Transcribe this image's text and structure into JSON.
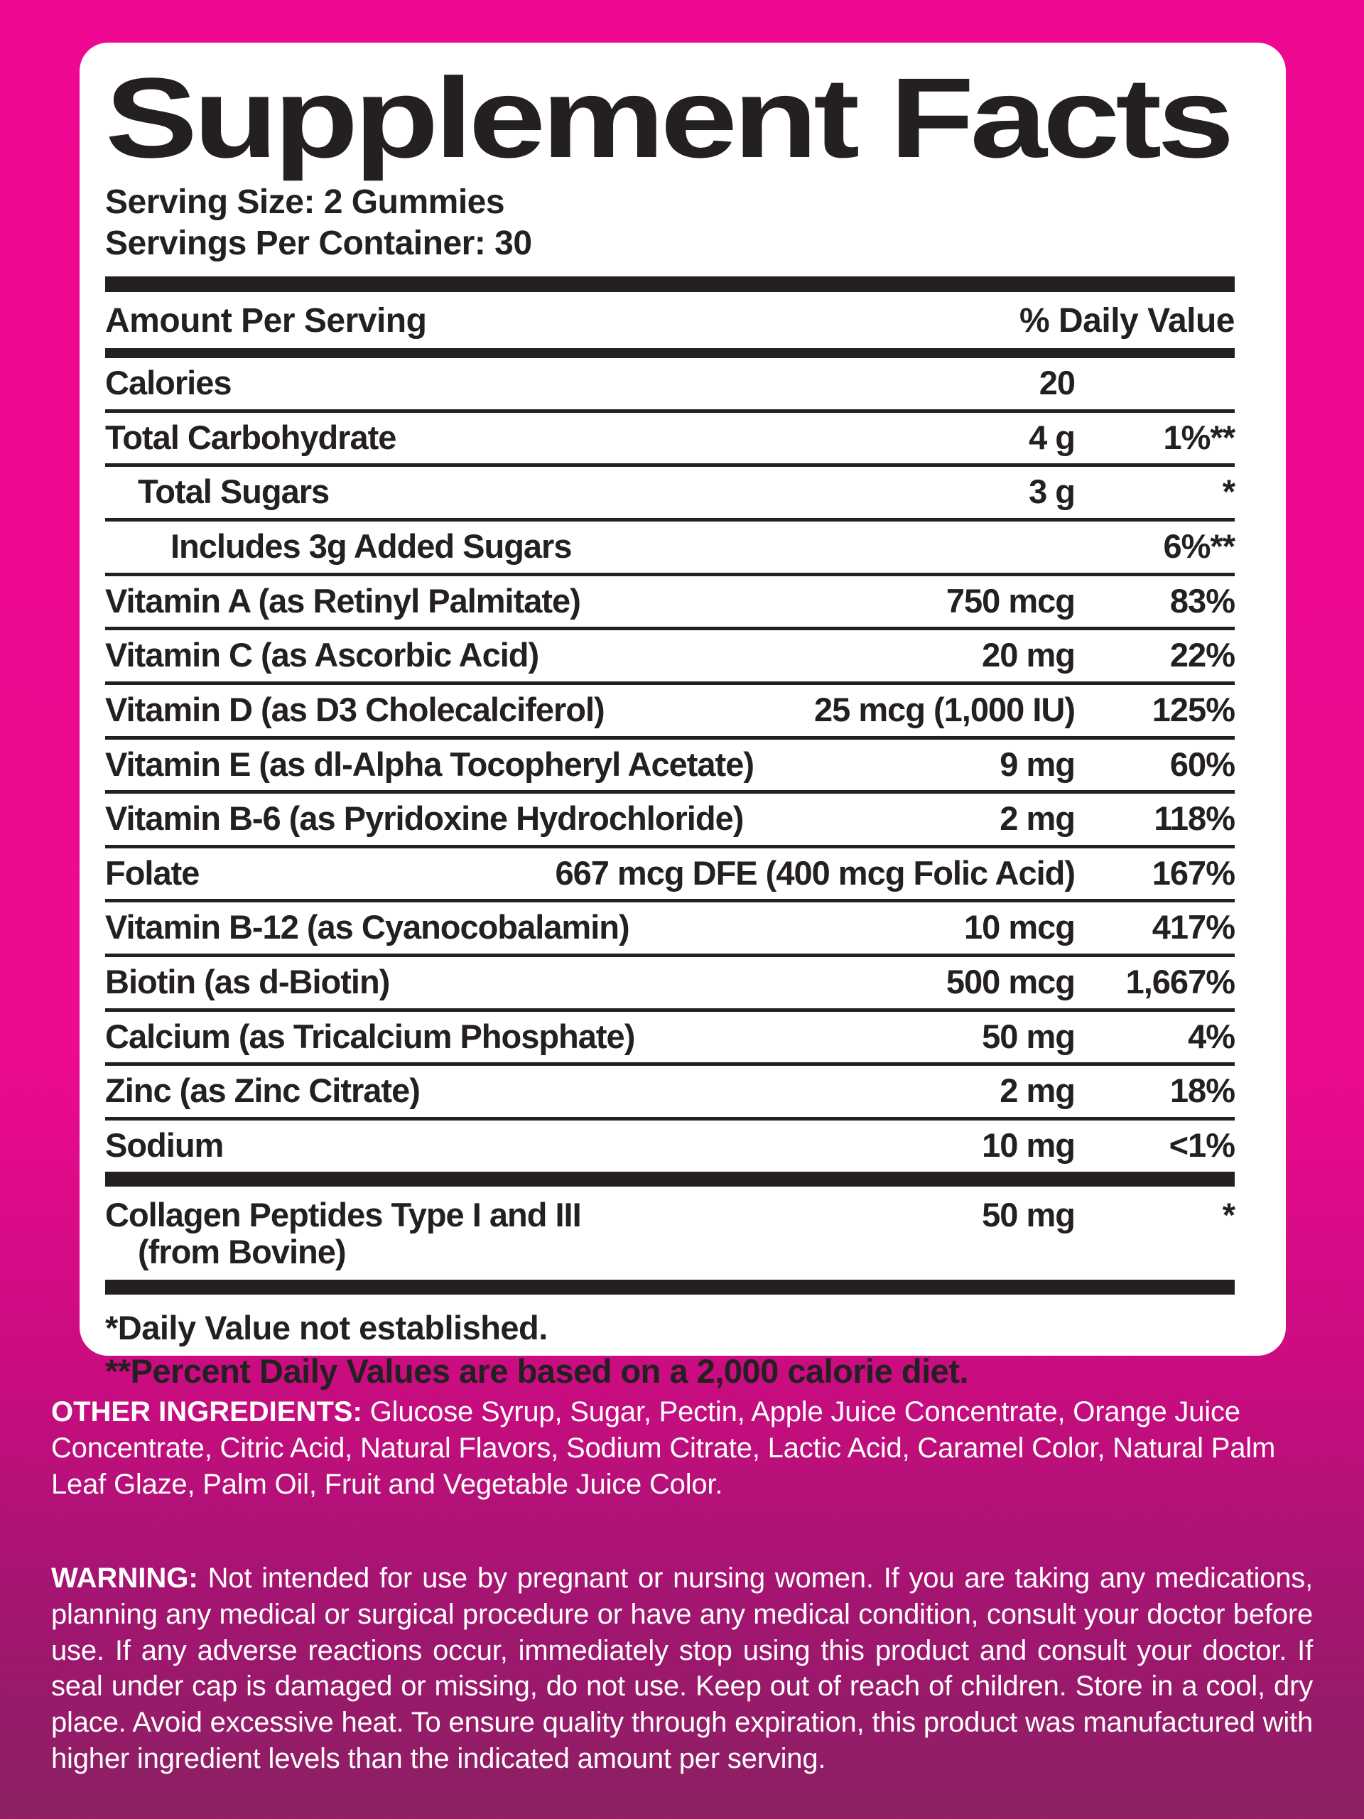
{
  "panel": {
    "title": "Supplement Facts",
    "serving_size": "Serving Size: 2 Gummies",
    "servings_per_container": "Servings Per Container: 30",
    "columns": {
      "amount": "Amount Per Serving",
      "dv": "% Daily Value"
    },
    "rows": [
      {
        "name": "Calories",
        "amount": "20",
        "dv": "",
        "indent": 0
      },
      {
        "name": "Total Carbohydrate",
        "amount": "4 g",
        "dv": "1%**",
        "indent": 0
      },
      {
        "name": "Total Sugars",
        "amount": "3 g",
        "dv": "*",
        "indent": 1
      },
      {
        "name": "Includes 3g Added Sugars",
        "amount": "",
        "dv": "6%**",
        "indent": 2
      },
      {
        "name": "Vitamin A (as Retinyl Palmitate)",
        "amount": "750 mcg",
        "dv": "83%",
        "indent": 0
      },
      {
        "name": "Vitamin C (as Ascorbic Acid)",
        "amount": "20 mg",
        "dv": "22%",
        "indent": 0
      },
      {
        "name": "Vitamin D (as D3 Cholecalciferol)",
        "amount": "25 mcg (1,000 IU)",
        "dv": "125%",
        "indent": 0
      },
      {
        "name": "Vitamin E (as dl-Alpha Tocopheryl Acetate)",
        "amount": "9 mg",
        "dv": "60%",
        "indent": 0
      },
      {
        "name": "Vitamin B-6 (as Pyridoxine Hydrochloride)",
        "amount": "2 mg",
        "dv": "118%",
        "indent": 0
      },
      {
        "name": "Folate",
        "amount": "667 mcg DFE (400 mcg Folic Acid)",
        "dv": "167%",
        "indent": 0
      },
      {
        "name": "Vitamin B-12 (as Cyanocobalamin)",
        "amount": "10 mcg",
        "dv": "417%",
        "indent": 0
      },
      {
        "name": "Biotin (as d-Biotin)",
        "amount": "500 mcg",
        "dv": "1,667%",
        "indent": 0
      },
      {
        "name": "Calcium (as Tricalcium Phosphate)",
        "amount": "50 mg",
        "dv": "4%",
        "indent": 0
      },
      {
        "name": "Zinc (as Zinc Citrate)",
        "amount": "2 mg",
        "dv": "18%",
        "indent": 0
      },
      {
        "name": "Sodium",
        "amount": "10 mg",
        "dv": "<1%",
        "indent": 0
      }
    ],
    "collagen": {
      "name_line1": "Collagen Peptides Type I and III",
      "name_line2": "(from Bovine)",
      "amount": "50 mg",
      "dv": "*"
    },
    "footnotes": [
      "*Daily Value not established.",
      "**Percent Daily Values are based on a 2,000 calorie diet."
    ]
  },
  "other_ingredients": {
    "label": "OTHER INGREDIENTS:",
    "text": "Glucose Syrup, Sugar, Pectin, Apple Juice Concentrate, Orange Juice Concentrate, Citric Acid, Natural Flavors, Sodium Citrate, Lactic Acid, Caramel Color, Natural Palm Leaf Glaze, Palm Oil, Fruit and Vegetable Juice Color."
  },
  "warning": {
    "label": "WARNING:",
    "text": "Not intended for use by pregnant or nursing women. If you are taking any medications, planning any medical or surgical procedure or have any medical condition, consult your doctor before use. If any adverse reactions occur, immediately stop using this product and consult your doctor. If seal under cap is damaged or missing, do not use. Keep out of reach of children. Store in a cool, dry place. Avoid excessive heat. To ensure quality through expiration, this product was manufactured with higher ingredient levels than the indicated amount per serving."
  },
  "colors": {
    "background_pink": "#EC0A8E",
    "background_deep_magenta": "#8B2062",
    "panel_background": "#FFFFFF",
    "ink": "#242022",
    "pink_section_text": "#FFFFFF"
  }
}
